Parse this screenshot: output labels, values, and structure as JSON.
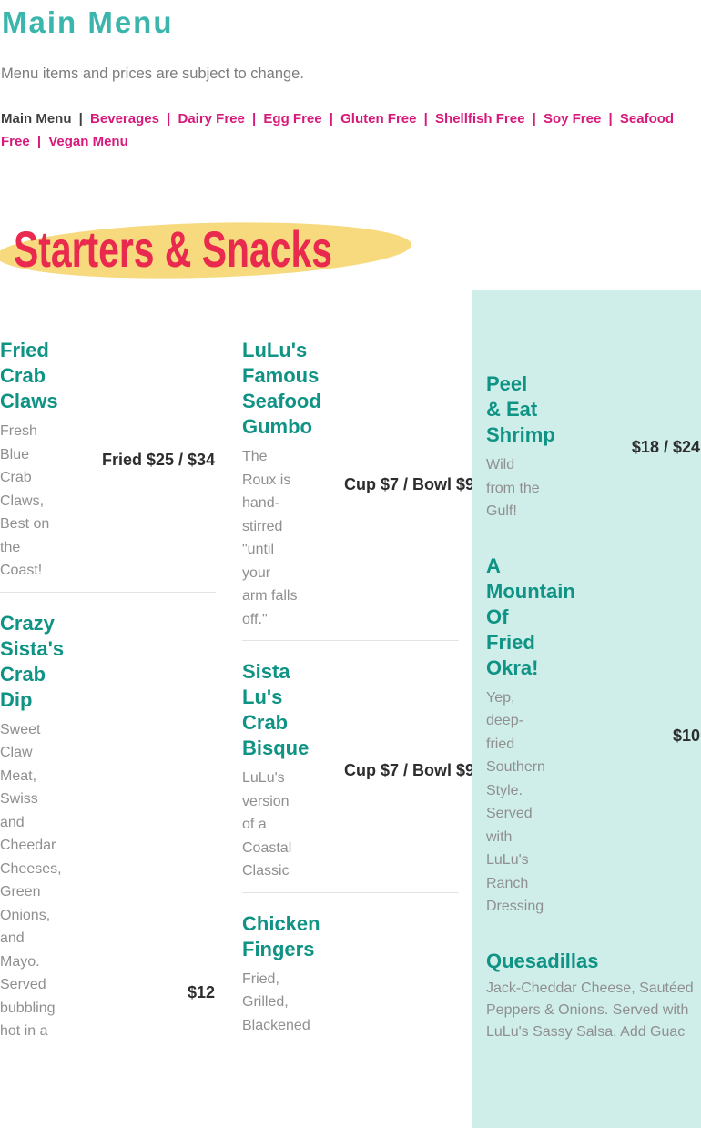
{
  "page": {
    "title": "Main Menu",
    "disclaimer": "Menu items and prices are subject to change.",
    "section_title": "Starters & Snacks"
  },
  "nav": {
    "current": "Main Menu",
    "separator": "|",
    "links": [
      "Beverages",
      "Dairy Free",
      "Egg Free",
      "Gluten Free",
      "Shellfish Free",
      "Soy Free",
      "Seafood Free",
      "Vegan Menu"
    ]
  },
  "colors": {
    "title_teal": "#3bb6ac",
    "item_name_teal": "#0e9384",
    "link_pink": "#d6197b",
    "section_red": "#e9294d",
    "highlight_yellow": "#f8da7e",
    "panel_mint": "#cfeeea",
    "description_gray": "#8f8f8f",
    "price_dark": "#2d2d2d"
  },
  "menu": {
    "columns": [
      {
        "items": [
          {
            "name": "Fried Crab Claws",
            "description": "Fresh Blue Crab Claws, Best on the Coast!",
            "price": "Fried $25 / $34"
          },
          {
            "name": "Crazy Sista's Crab Dip",
            "description": "Sweet Claw Meat, Swiss and Cheedar Cheeses, Green Onions, and Mayo. Served bubbling hot in a",
            "price": "$12"
          }
        ]
      },
      {
        "items": [
          {
            "name": "LuLu's Famous Seafood Gumbo",
            "description": "The Roux is hand-stirred \"until your arm falls off.\"",
            "price": "Cup $7 / Bowl $9"
          },
          {
            "name": "Sista Lu's Crab Bisque",
            "description": "LuLu's version of a Coastal Classic",
            "price": "Cup $7 / Bowl $9"
          },
          {
            "name": "Chicken Fingers",
            "description": "Fried, Grilled, Blackened",
            "price": ""
          }
        ]
      },
      {
        "items": [
          {
            "name": "Peel & Eat Shrimp",
            "description": "Wild from the Gulf!",
            "price": "$18 / $24"
          },
          {
            "name": "A Mountain Of Fried Okra!",
            "description": "Yep, deep-fried Southern Style. Served with LuLu's Ranch Dressing",
            "price": "$10"
          },
          {
            "name": "Quesadillas",
            "description": "Jack-Cheddar Cheese, Sautéed Peppers & Onions. Served with LuLu's Sassy Salsa. Add Guac",
            "price": ""
          }
        ]
      }
    ]
  }
}
